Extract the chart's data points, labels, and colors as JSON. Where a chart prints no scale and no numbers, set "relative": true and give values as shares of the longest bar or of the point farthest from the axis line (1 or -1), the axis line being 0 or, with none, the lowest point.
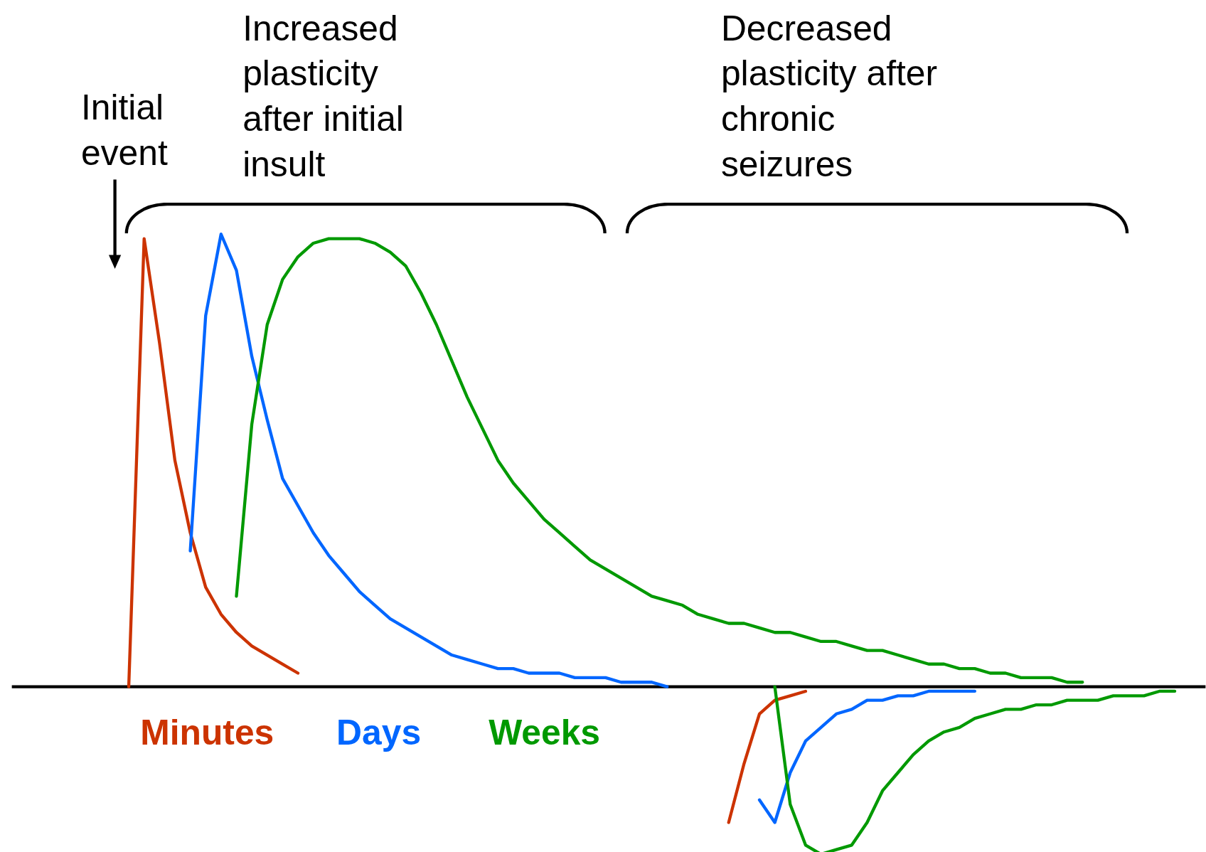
{
  "chart_data": {
    "type": "line",
    "relative": true,
    "tick_labels": false,
    "grid": false,
    "marker": "none",
    "line_style": "solid",
    "annotations": [
      "Initial event",
      "Increased plasticity after initial insult",
      "Decreased plasticity after chronic seizures"
    ],
    "categories": [
      null,
      null,
      null,
      null,
      null,
      null,
      null,
      null,
      null,
      null,
      null,
      null,
      null,
      null,
      null,
      null,
      null,
      null,
      null,
      null,
      null,
      null,
      null,
      null,
      null,
      null,
      null,
      null,
      null,
      null,
      null,
      null,
      null,
      null,
      null,
      null,
      null,
      null,
      null,
      null,
      null,
      null,
      null,
      null,
      null,
      null,
      null,
      null,
      null,
      null,
      null,
      null,
      null,
      null,
      null,
      null,
      null,
      null,
      null,
      null,
      null,
      null,
      null,
      null,
      null,
      null,
      null,
      null,
      null
    ],
    "series": [
      {
        "name": "Minutes",
        "color": "#cc3300",
        "values": [
          0,
          0.99,
          0.76,
          0.5,
          0.34,
          0.22,
          0.16,
          0.12,
          0.09,
          0.07,
          0.05,
          0.03,
          null,
          null,
          null,
          null,
          null,
          null,
          null,
          null,
          null,
          null,
          null,
          null,
          null,
          null,
          null,
          null,
          null,
          null,
          null,
          null,
          null,
          null,
          null,
          null,
          null,
          null,
          null,
          null,
          null,
          null,
          null,
          null,
          null,
          null,
          null,
          null,
          null,
          null,
          null,
          null,
          null,
          null,
          null,
          null,
          null,
          null,
          null,
          null,
          null,
          null,
          null,
          null,
          null,
          null,
          null,
          null,
          null
        ]
      },
      {
        "name": "Days",
        "color": "#0066ff",
        "values": [
          null,
          null,
          null,
          null,
          0.3,
          0.82,
          1.0,
          0.92,
          0.73,
          0.59,
          0.46,
          0.4,
          0.34,
          0.29,
          0.25,
          0.21,
          0.18,
          0.15,
          0.13,
          0.11,
          0.09,
          0.07,
          0.06,
          0.05,
          0.04,
          0.04,
          0.03,
          0.03,
          0.03,
          0.02,
          0.02,
          0.02,
          0.01,
          0.01,
          0.01,
          0,
          null,
          null,
          null,
          null,
          null,
          null,
          null,
          null,
          null,
          null,
          null,
          null,
          null,
          null,
          null,
          null,
          null,
          null,
          null,
          null,
          null,
          null,
          null,
          null,
          null,
          null,
          null,
          null,
          null,
          null,
          null,
          null,
          null
        ]
      },
      {
        "name": "Weeks",
        "color": "#009900",
        "values": [
          null,
          null,
          null,
          null,
          null,
          null,
          null,
          0.2,
          0.58,
          0.8,
          0.9,
          0.95,
          0.98,
          0.99,
          0.99,
          0.99,
          0.98,
          0.96,
          0.93,
          0.87,
          0.8,
          0.72,
          0.64,
          0.57,
          0.5,
          0.45,
          0.41,
          0.37,
          0.34,
          0.31,
          0.28,
          0.26,
          0.24,
          0.22,
          0.2,
          0.19,
          0.18,
          0.16,
          0.15,
          0.14,
          0.14,
          0.13,
          0.12,
          0.12,
          0.11,
          0.1,
          0.1,
          0.09,
          0.08,
          0.08,
          0.07,
          0.06,
          0.05,
          0.05,
          0.04,
          0.04,
          0.03,
          0.03,
          0.02,
          0.02,
          0.02,
          0.01,
          0.01,
          null,
          null,
          null,
          null,
          null,
          null
        ]
      },
      {
        "color": "#cc3300",
        "values": [
          null,
          null,
          null,
          null,
          null,
          null,
          null,
          null,
          null,
          null,
          null,
          null,
          null,
          null,
          null,
          null,
          null,
          null,
          null,
          null,
          null,
          null,
          null,
          null,
          null,
          null,
          null,
          null,
          null,
          null,
          null,
          null,
          null,
          null,
          null,
          null,
          null,
          null,
          null,
          -0.3,
          -0.17,
          -0.06,
          -0.03,
          -0.02,
          -0.01,
          null,
          null,
          null,
          null,
          null,
          null,
          null,
          null,
          null,
          null,
          null,
          null,
          null,
          null,
          null,
          null,
          null,
          null,
          null,
          null,
          null,
          null,
          null,
          null
        ]
      },
      {
        "color": "#0066ff",
        "values": [
          null,
          null,
          null,
          null,
          null,
          null,
          null,
          null,
          null,
          null,
          null,
          null,
          null,
          null,
          null,
          null,
          null,
          null,
          null,
          null,
          null,
          null,
          null,
          null,
          null,
          null,
          null,
          null,
          null,
          null,
          null,
          null,
          null,
          null,
          null,
          null,
          null,
          null,
          null,
          null,
          null,
          -0.25,
          -0.3,
          -0.19,
          -0.12,
          -0.09,
          -0.06,
          -0.05,
          -0.03,
          -0.03,
          -0.02,
          -0.02,
          -0.01,
          -0.01,
          -0.01,
          -0.01,
          null,
          null,
          null,
          null,
          null,
          null,
          null,
          null,
          null,
          null,
          null,
          null,
          null
        ]
      },
      {
        "color": "#009900",
        "values": [
          null,
          null,
          null,
          null,
          null,
          null,
          null,
          null,
          null,
          null,
          null,
          null,
          null,
          null,
          null,
          null,
          null,
          null,
          null,
          null,
          null,
          null,
          null,
          null,
          null,
          null,
          null,
          null,
          null,
          null,
          null,
          null,
          null,
          null,
          null,
          null,
          null,
          null,
          null,
          null,
          null,
          null,
          0,
          -0.26,
          -0.35,
          -0.37,
          -0.36,
          -0.35,
          -0.3,
          -0.23,
          -0.19,
          -0.15,
          -0.12,
          -0.1,
          -0.09,
          -0.07,
          -0.06,
          -0.05,
          -0.05,
          -0.04,
          -0.04,
          -0.03,
          -0.03,
          -0.03,
          -0.02,
          -0.02,
          -0.02,
          -0.01,
          -0.01
        ]
      }
    ]
  }
}
